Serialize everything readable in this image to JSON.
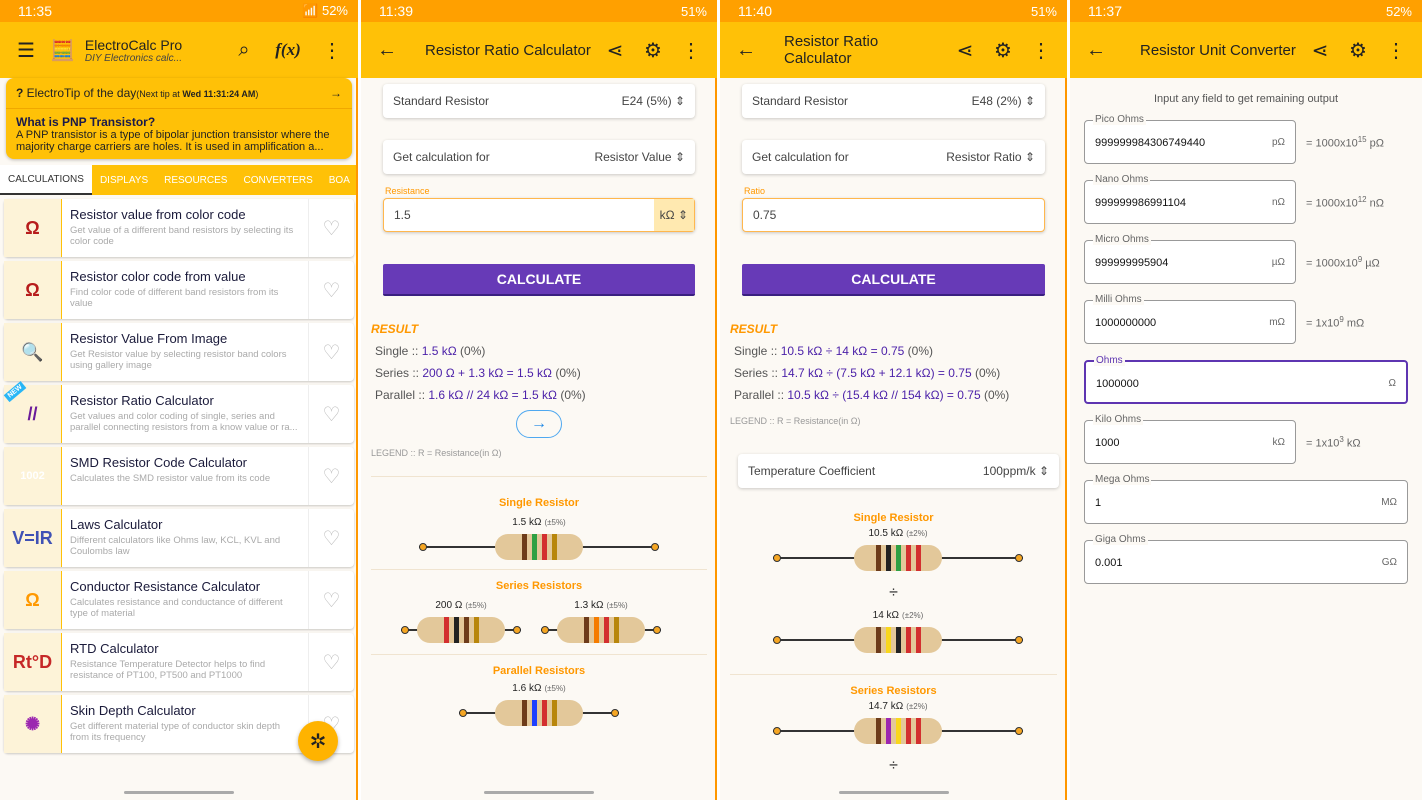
{
  "colors": {
    "status": "#ffa000",
    "appbar": "#ffc107",
    "accent": "#673ab7",
    "result": "#ff9800"
  },
  "p1": {
    "time": "11:35",
    "battery": "52%",
    "app_title": "ElectroCalc Pro",
    "app_subtitle": "DIY Electronics calc...",
    "fx": "f(x)",
    "tip": {
      "label": "ElectroTip of the day",
      "next": "(Next tip at ",
      "next_time": "Wed 11:31:24 AM",
      "close": ")",
      "title": "What is PNP Transistor?",
      "body": "A PNP transistor is a type of bipolar junction transistor where the majority charge carriers are holes. It is used in amplification a..."
    },
    "tabs": [
      "CALCULATIONS",
      "DISPLAYS",
      "RESOURCES",
      "CONVERTERS",
      "BOA"
    ],
    "items": [
      {
        "title": "Resistor value from color code",
        "desc": "Get value of a different band resistors by selecting its color code",
        "thumb": "Ω"
      },
      {
        "title": "Resistor color code from value",
        "desc": "Find color code of different band resistors from its value",
        "thumb": "Ω"
      },
      {
        "title": "Resistor Value From Image",
        "desc": "Get Resistor value by selecting resistor band colors using gallery image",
        "thumb": "🔍"
      },
      {
        "title": "Resistor Ratio Calculator",
        "desc": "Get values and color coding of single, series and parallel connecting resistors from a know value or ra...",
        "thumb": "//",
        "badge": "NEW"
      },
      {
        "title": "SMD Resistor Code Calculator",
        "desc": "Calculates the SMD resistor value from its code",
        "thumb": "1002"
      },
      {
        "title": "Laws Calculator",
        "desc": "Different calculators like Ohms law, KCL, KVL and Coulombs law",
        "thumb": "V=IR"
      },
      {
        "title": "Conductor Resistance Calculator",
        "desc": "Calculates resistance and conductance of different type of material",
        "thumb": "Ω"
      },
      {
        "title": "RTD Calculator",
        "desc": "Resistance Temperature Detector helps to find resistance of PT100, PT500 and PT1000",
        "thumb": "Rt°D"
      },
      {
        "title": "Skin Depth Calculator",
        "desc": "Get different material type of conductor skin depth from its frequency",
        "thumb": "✺"
      }
    ]
  },
  "p2": {
    "time": "11:39",
    "battery": "51%",
    "title": "Resistor Ratio Calculator",
    "std_label": "Standard Resistor",
    "std_value": "E24 (5%)",
    "get_label": "Get calculation for",
    "get_value": "Resistor Value",
    "input_label": "Resistance",
    "input_value": "1.5",
    "input_unit": "kΩ",
    "calculate": "CALCULATE",
    "result": "RESULT",
    "lines": [
      {
        "k": "Single :: ",
        "v": "1.5 kΩ",
        "p": " (0%)"
      },
      {
        "k": "Series :: ",
        "v": "200 Ω + 1.3 kΩ = 1.5 kΩ",
        "p": " (0%)"
      },
      {
        "k": "Parallel :: ",
        "v": "1.6 kΩ // 24 kΩ = 1.5 kΩ",
        "p": " (0%)"
      }
    ],
    "legend": "LEGEND :: R = Resistance(in Ω)",
    "single": {
      "title": "Single Resistor",
      "r": {
        "v": "1.5 kΩ",
        "t": "(±5%)",
        "bands": [
          "#6d3b1a",
          "#2ea043",
          "#d32f2f",
          "#b8860b"
        ]
      }
    },
    "series": {
      "title": "Series Resistors",
      "r1": {
        "v": "200 Ω",
        "t": "(±5%)",
        "bands": [
          "#d32f2f",
          "#222",
          "#6d3b1a",
          "#b8860b"
        ]
      },
      "r2": {
        "v": "1.3 kΩ",
        "t": "(±5%)",
        "bands": [
          "#6d3b1a",
          "#f57c00",
          "#d32f2f",
          "#b8860b"
        ]
      }
    },
    "parallel": {
      "title": "Parallel Resistors",
      "r": {
        "v": "1.6 kΩ",
        "t": "(±5%)",
        "bands": [
          "#6d3b1a",
          "#1e40ff",
          "#d32f2f",
          "#b8860b"
        ]
      }
    }
  },
  "p3": {
    "time": "11:40",
    "battery": "51%",
    "title": "Resistor Ratio Calculator",
    "std_label": "Standard Resistor",
    "std_value": "E48 (2%)",
    "get_label": "Get calculation for",
    "get_value": "Resistor Ratio",
    "input_label": "Ratio",
    "input_value": "0.75",
    "calculate": "CALCULATE",
    "result": "RESULT",
    "lines": [
      {
        "k": "Single :: ",
        "v": "10.5 kΩ ÷ 14 kΩ = 0.75",
        "p": " (0%)"
      },
      {
        "k": "Series :: ",
        "v": "14.7 kΩ ÷ (7.5 kΩ + 12.1 kΩ) = 0.75",
        "p": " (0%)"
      },
      {
        "k": "Parallel :: ",
        "v": "10.5 kΩ ÷ (15.4 kΩ // 154 kΩ) = 0.75",
        "p": " (0%)"
      }
    ],
    "legend": "LEGEND :: R = Resistance(in Ω)",
    "temp_label": "Temperature Coefficient",
    "temp_value": "100ppm/k",
    "single": {
      "title": "Single Resistor",
      "r1": {
        "v": "10.5 kΩ",
        "t": "(±2%)",
        "bands": [
          "#6d3b1a",
          "#222",
          "#2ea043",
          "#d32f2f",
          "#d32f2f"
        ]
      },
      "div": "÷",
      "r2": {
        "v": "14 kΩ",
        "t": "(±2%)",
        "bands": [
          "#6d3b1a",
          "#f9d71c",
          "#222",
          "#d32f2f",
          "#d32f2f"
        ]
      }
    },
    "series": {
      "title": "Series Resistors",
      "r": {
        "v": "14.7 kΩ",
        "t": "(±2%)",
        "bands": [
          "#6d3b1a",
          "#9c27b0",
          "#f9d71c",
          "#d32f2f",
          "#d32f2f"
        ]
      },
      "div": "÷"
    }
  },
  "p4": {
    "time": "11:37",
    "battery": "52%",
    "title": "Resistor Unit Converter",
    "hint": "Input any field to get remaining output",
    "fields": [
      {
        "label": "Pico Ohms",
        "value": "999999984306749440",
        "unit": "pΩ",
        "eq": "= 1000x10",
        "exp": "15",
        "eu": " pΩ"
      },
      {
        "label": "Nano Ohms",
        "value": "999999986991104",
        "unit": "nΩ",
        "eq": "= 1000x10",
        "exp": "12",
        "eu": " nΩ"
      },
      {
        "label": "Micro Ohms",
        "value": "999999995904",
        "unit": "µΩ",
        "eq": "= 1000x10",
        "exp": "9",
        "eu": " µΩ"
      },
      {
        "label": "Milli Ohms",
        "value": "1000000000",
        "unit": "mΩ",
        "eq": "= 1x10",
        "exp": "9",
        "eu": " mΩ"
      },
      {
        "label": "Ohms",
        "value": "1000000",
        "unit": "Ω"
      },
      {
        "label": "Kilo Ohms",
        "value": "1000",
        "unit": "kΩ",
        "eq": "= 1x10",
        "exp": "3",
        "eu": " kΩ"
      },
      {
        "label": "Mega Ohms",
        "value": "1",
        "unit": "MΩ"
      },
      {
        "label": "Giga Ohms",
        "value": "0.001",
        "unit": "GΩ"
      }
    ]
  }
}
